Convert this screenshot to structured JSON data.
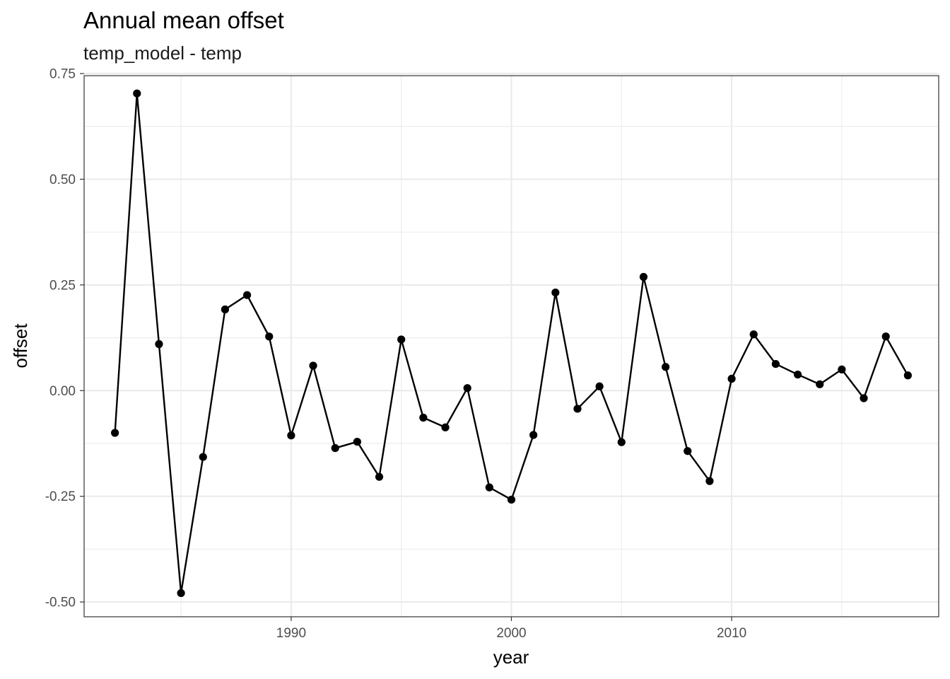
{
  "chart_data": {
    "type": "line",
    "title": "Annual mean offset",
    "subtitle": "temp_model - temp",
    "xlabel": "year",
    "ylabel": "offset",
    "xlim": [
      1980.6,
      2019.4
    ],
    "ylim": [
      -0.535,
      0.745
    ],
    "x_ticks": [
      1990,
      2000,
      2010
    ],
    "x_tick_labels": [
      "1990",
      "2000",
      "2010"
    ],
    "x_minor_ticks": [
      1985,
      1995,
      2005,
      2015
    ],
    "y_ticks": [
      -0.5,
      -0.25,
      0.0,
      0.25,
      0.5,
      0.75
    ],
    "y_tick_labels": [
      "-0.50",
      "-0.25",
      "0.00",
      "0.25",
      "0.50",
      "0.75"
    ],
    "y_minor_ticks": [
      -0.375,
      -0.125,
      0.125,
      0.375,
      0.625
    ],
    "grid": true,
    "markers": true,
    "series_color": "#000000",
    "grid_color": "#ebebeb",
    "series": [
      {
        "x": [
          1982,
          1983,
          1984,
          1985,
          1986,
          1987,
          1988,
          1989,
          1990,
          1991,
          1992,
          1993,
          1994,
          1995,
          1996,
          1997,
          1998,
          1999,
          2000,
          2001,
          2002,
          2003,
          2004,
          2005,
          2006,
          2007,
          2008,
          2009,
          2010,
          2011,
          2012,
          2013,
          2014,
          2015,
          2016,
          2017,
          2018
        ],
        "values": [
          -0.1,
          0.703,
          0.11,
          -0.479,
          -0.157,
          0.192,
          0.226,
          0.128,
          -0.106,
          0.059,
          -0.136,
          -0.121,
          -0.204,
          0.121,
          -0.064,
          -0.087,
          0.006,
          -0.229,
          -0.258,
          -0.105,
          0.232,
          -0.043,
          0.01,
          -0.122,
          0.269,
          0.056,
          -0.143,
          -0.214,
          0.028,
          0.133,
          0.063,
          0.038,
          0.015,
          0.05,
          -0.018,
          0.128,
          0.036
        ]
      }
    ]
  }
}
